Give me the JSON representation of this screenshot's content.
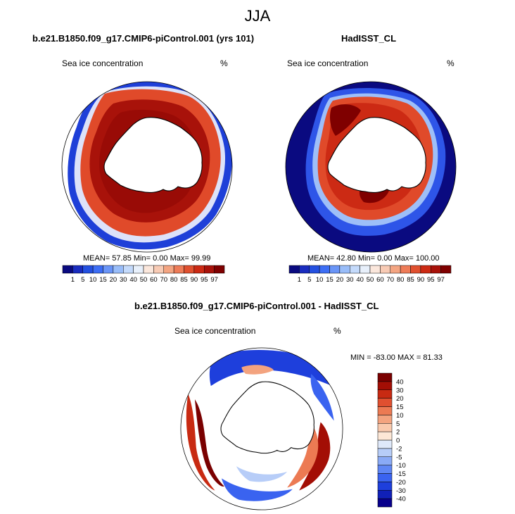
{
  "figure": {
    "season": "JJA"
  },
  "panels": [
    {
      "id": "model",
      "title": "b.e21.B1850.f09_g17.CMIP6-piControl.001 (yrs 101)",
      "subtitle": "Sea ice concentration",
      "units": "%",
      "mean_label": "MEAN=",
      "mean": "57.85",
      "min_label": "Min=",
      "min": "0.00",
      "max_label": "Max=",
      "max": "99.99"
    },
    {
      "id": "obs",
      "title": "HadISST_CL",
      "subtitle": "Sea ice concentration",
      "units": "%",
      "mean_label": "MEAN=",
      "mean": "42.80",
      "min_label": "Min=",
      "min": "0.00",
      "max_label": "Max=",
      "max": "100.00"
    },
    {
      "id": "diff",
      "title": "b.e21.B1850.f09_g17.CMIP6-piControl.001 - HadISST_CL",
      "subtitle": "Sea ice concentration",
      "units": "%",
      "minmax_text": "MIN = -83.00 MAX =  81.33"
    }
  ],
  "colors": {
    "land": "#ffffff",
    "coast": "#000000",
    "frame": "#000000"
  },
  "chart_data": [
    {
      "type": "heatmap",
      "panel": "model",
      "projection": "south-polar-stereographic",
      "variable": "Sea ice concentration",
      "units": "%",
      "mean": 57.85,
      "min": 0.0,
      "max": 99.99,
      "colorbar": {
        "orientation": "horizontal",
        "levels": [
          "1",
          "5",
          "10",
          "15",
          "20",
          "30",
          "40",
          "50",
          "60",
          "70",
          "80",
          "85",
          "90",
          "95",
          "97"
        ],
        "colors": [
          "#0a0a80",
          "#1a2dbf",
          "#2450e0",
          "#3d6ef5",
          "#6a95f7",
          "#99bdf9",
          "#c4dafb",
          "#e8f0fb",
          "#fbe7dc",
          "#f8cbb5",
          "#f4a582",
          "#ee7c58",
          "#e0502f",
          "#cc2a14",
          "#a8120a",
          "#7f0000"
        ]
      }
    },
    {
      "type": "heatmap",
      "panel": "obs",
      "projection": "south-polar-stereographic",
      "variable": "Sea ice concentration",
      "units": "%",
      "mean": 42.8,
      "min": 0.0,
      "max": 100.0,
      "colorbar": {
        "orientation": "horizontal",
        "levels": [
          "1",
          "5",
          "10",
          "15",
          "20",
          "30",
          "40",
          "50",
          "60",
          "70",
          "80",
          "85",
          "90",
          "95",
          "97"
        ],
        "colors": [
          "#0a0a80",
          "#1a2dbf",
          "#2450e0",
          "#3d6ef5",
          "#6a95f7",
          "#99bdf9",
          "#c4dafb",
          "#e8f0fb",
          "#fbe7dc",
          "#f8cbb5",
          "#f4a582",
          "#ee7c58",
          "#e0502f",
          "#cc2a14",
          "#a8120a",
          "#7f0000"
        ]
      }
    },
    {
      "type": "heatmap",
      "panel": "diff",
      "projection": "south-polar-stereographic",
      "variable": "Sea ice concentration",
      "units": "%",
      "min": -83.0,
      "max": 81.33,
      "colorbar": {
        "orientation": "vertical",
        "levels": [
          "-40",
          "-30",
          "-20",
          "-15",
          "-10",
          "-5",
          "-2",
          "0",
          "2",
          "5",
          "10",
          "15",
          "20",
          "30",
          "40"
        ],
        "colors": [
          "#08008c",
          "#1020b8",
          "#1e3fdc",
          "#3a63f0",
          "#5f86f4",
          "#8aaaf6",
          "#b7cdf8",
          "#dfe9fa",
          "#fde7d6",
          "#f9c9ad",
          "#f3a37f",
          "#ec7a53",
          "#e05030",
          "#c82a12",
          "#a30e05",
          "#7a0000"
        ]
      }
    }
  ]
}
